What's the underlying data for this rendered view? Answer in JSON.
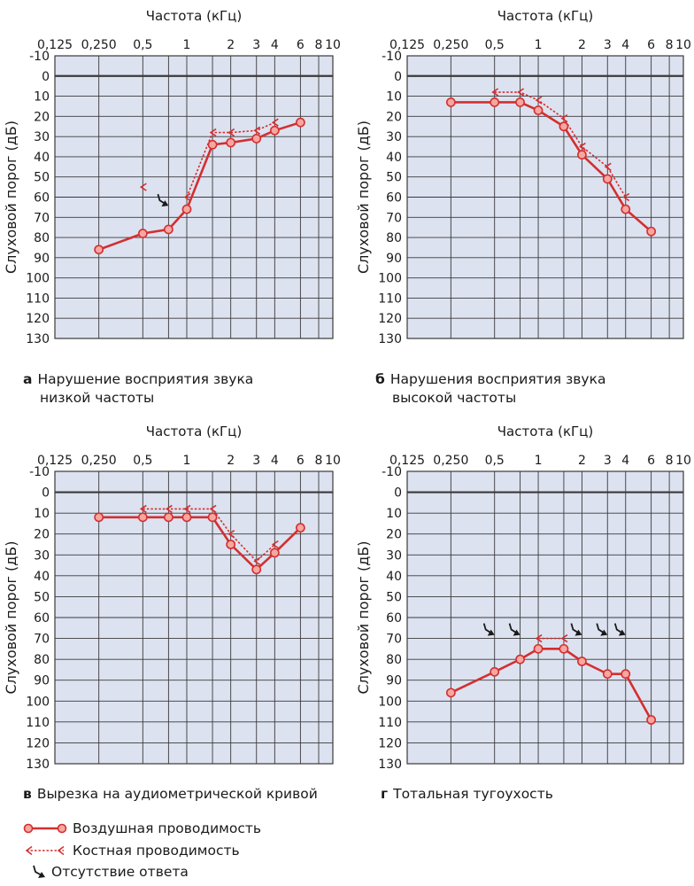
{
  "colors": {
    "air": "#d32f2f",
    "bone": "#d32f2f",
    "marker_fill": "#f7a6a0",
    "grid_bg": "#dde2f0",
    "grid_line": "#3a3a3a",
    "no_response": "#1a1a1a"
  },
  "legend": {
    "air_conduction": "Воздушная проводимость",
    "bone_conduction": "Костная проводимость",
    "no_response": "Отсутствие ответа"
  },
  "chart_data": [
    {
      "type": "line",
      "id": "a",
      "letter": "а",
      "caption_line1": "Нарушение восприятия звука",
      "caption_line2": "низкой частоты",
      "xlabel": "Частота (кГц)",
      "ylabel": "Слуховой порог (дБ)",
      "x_ticks": [
        "0,125",
        "0,250",
        "0,5",
        "1",
        "2",
        "3",
        "4",
        "6",
        "8",
        "10"
      ],
      "y_ticks": [
        "-10",
        "0",
        "10",
        "20",
        "30",
        "40",
        "50",
        "60",
        "70",
        "80",
        "90",
        "100",
        "110",
        "120",
        "130"
      ],
      "ylim": [
        -10,
        130
      ],
      "y_inverted": true,
      "x_scale": "log",
      "grid": true,
      "series": [
        {
          "name": "Воздушная проводимость",
          "style": "air",
          "x": [
            0.25,
            0.5,
            0.75,
            1,
            1.5,
            2,
            3,
            4,
            6
          ],
          "y": [
            86,
            78,
            76,
            66,
            34,
            33,
            31,
            27,
            23
          ]
        },
        {
          "name": "Костная проводимость",
          "style": "bone",
          "x": [
            1,
            1.5,
            2,
            3,
            4
          ],
          "y": [
            60,
            28,
            28,
            27,
            23
          ]
        },
        {
          "name": "Костная проводимость",
          "style": "bone-point",
          "x": [
            0.5
          ],
          "y": [
            55
          ]
        }
      ],
      "no_response": [
        {
          "x": 0.75,
          "y": 66
        }
      ]
    },
    {
      "type": "line",
      "id": "b",
      "letter": "б",
      "caption_line1": "Нарушения восприятия звука",
      "caption_line2": "высокой частоты",
      "xlabel": "Частота (кГц)",
      "ylabel": "Слуховой порог (дБ)",
      "x_ticks": [
        "0,125",
        "0,250",
        "0,5",
        "1",
        "2",
        "3",
        "4",
        "6",
        "8",
        "10"
      ],
      "y_ticks": [
        "-10",
        "0",
        "10",
        "20",
        "30",
        "40",
        "50",
        "60",
        "70",
        "80",
        "90",
        "100",
        "110",
        "120",
        "130"
      ],
      "ylim": [
        -10,
        130
      ],
      "y_inverted": true,
      "x_scale": "log",
      "grid": true,
      "series": [
        {
          "name": "Воздушная проводимость",
          "style": "air",
          "x": [
            0.25,
            0.5,
            0.75,
            1,
            1.5,
            2,
            3,
            4,
            6
          ],
          "y": [
            13,
            13,
            13,
            17,
            25,
            39,
            51,
            66,
            77
          ]
        },
        {
          "name": "Костная проводимость",
          "style": "bone",
          "x": [
            0.5,
            0.75,
            1,
            1.5,
            2,
            3,
            4
          ],
          "y": [
            8,
            8,
            12,
            21,
            35,
            45,
            60
          ]
        }
      ],
      "no_response": []
    },
    {
      "type": "line",
      "id": "c",
      "letter": "в",
      "caption_line1": "Вырезка на аудиометрической кривой",
      "caption_line2": "",
      "xlabel": "Частота (кГц)",
      "ylabel": "Слуховой порог (дБ)",
      "x_ticks": [
        "0,125",
        "0,250",
        "0,5",
        "1",
        "2",
        "3",
        "4",
        "6",
        "8",
        "10"
      ],
      "y_ticks": [
        "-10",
        "0",
        "10",
        "20",
        "30",
        "40",
        "50",
        "60",
        "70",
        "80",
        "90",
        "100",
        "110",
        "120",
        "130"
      ],
      "ylim": [
        -10,
        130
      ],
      "y_inverted": true,
      "x_scale": "log",
      "grid": true,
      "series": [
        {
          "name": "Воздушная проводимость",
          "style": "air",
          "x": [
            0.25,
            0.5,
            0.75,
            1,
            1.5,
            2,
            3,
            4,
            6
          ],
          "y": [
            12,
            12,
            12,
            12,
            12,
            25,
            37,
            29,
            17
          ]
        },
        {
          "name": "Костная проводимость",
          "style": "bone",
          "x": [
            0.5,
            0.75,
            1,
            1.5,
            2,
            3,
            4
          ],
          "y": [
            8,
            8,
            8,
            8,
            20,
            33,
            25
          ]
        }
      ],
      "no_response": []
    },
    {
      "type": "line",
      "id": "d",
      "letter": "г",
      "caption_line1": "Тотальная тугоухость",
      "caption_line2": "",
      "xlabel": "Частота (кГц)",
      "ylabel": "Слуховой порог (дБ)",
      "x_ticks": [
        "0,125",
        "0,250",
        "0,5",
        "1",
        "2",
        "3",
        "4",
        "6",
        "8",
        "10"
      ],
      "y_ticks": [
        "-10",
        "0",
        "10",
        "20",
        "30",
        "40",
        "50",
        "60",
        "70",
        "80",
        "90",
        "100",
        "110",
        "120",
        "130"
      ],
      "ylim": [
        -10,
        130
      ],
      "y_inverted": true,
      "x_scale": "log",
      "grid": true,
      "series": [
        {
          "name": "Воздушная проводимость",
          "style": "air",
          "x": [
            0.25,
            0.5,
            0.75,
            1,
            1.5,
            2,
            3,
            4,
            6
          ],
          "y": [
            96,
            86,
            80,
            75,
            75,
            81,
            87,
            87,
            109
          ]
        },
        {
          "name": "Костная проводимость",
          "style": "bone",
          "x": [
            1,
            1.5
          ],
          "y": [
            70,
            70
          ]
        }
      ],
      "no_response": [
        {
          "x": 0.5,
          "y": 70
        },
        {
          "x": 0.75,
          "y": 70
        },
        {
          "x": 2,
          "y": 70
        },
        {
          "x": 3,
          "y": 70
        },
        {
          "x": 4,
          "y": 70
        }
      ]
    }
  ]
}
